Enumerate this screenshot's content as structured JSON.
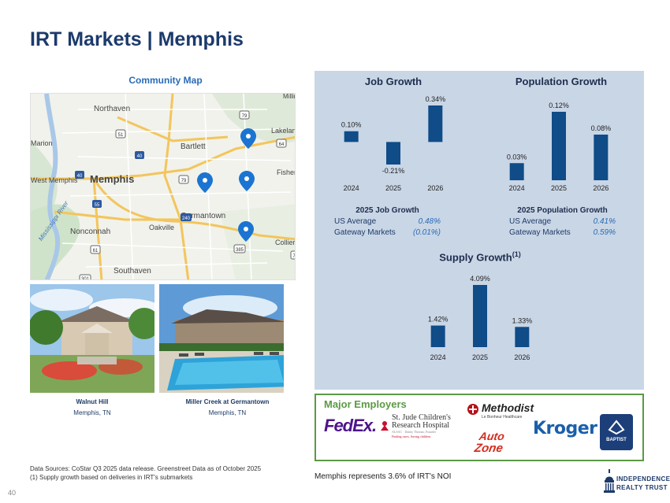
{
  "title": "IRT Markets | Memphis",
  "community_map": {
    "label": "Community Map",
    "places": [
      "Northaven",
      "Bartlett",
      "Memphis",
      "Germantown",
      "Nonconnah",
      "Oakville",
      "Southaven",
      "Collier",
      "Fisher",
      "Lakeland",
      "Millington"
    ],
    "map_text": [
      "Marion",
      "West Memphis",
      "Mississippi River"
    ],
    "route_shields": [
      "79",
      "51",
      "40",
      "64",
      "55",
      "79",
      "240",
      "385",
      "61",
      "301",
      "7",
      "40"
    ]
  },
  "properties": [
    {
      "name": "Walnut Hill",
      "location": "Memphis, TN"
    },
    {
      "name": "Miller Creek at Germantown",
      "location": "Memphis, TN"
    }
  ],
  "job_growth": {
    "title": "Job Growth",
    "stats": {
      "title": "2025 Job Growth",
      "rows": [
        {
          "label": "US Average",
          "value": "0.48%"
        },
        {
          "label": "Gateway Markets",
          "value": "(0.01%)"
        }
      ]
    }
  },
  "population_growth": {
    "title": "Population Growth",
    "stats": {
      "title": "2025 Population Growth",
      "rows": [
        {
          "label": "US Average",
          "value": "0.41%"
        },
        {
          "label": "Gateway Markets",
          "value": "0.59%"
        }
      ]
    }
  },
  "supply_growth": {
    "title": "Supply Growth",
    "superscript": "(1)"
  },
  "chart_data": [
    {
      "type": "bar",
      "title": "Job Growth",
      "categories": [
        "2024",
        "2025",
        "2026"
      ],
      "values": [
        0.1,
        -0.21,
        0.34
      ],
      "labels": [
        "0.10%",
        "-0.21%",
        "0.34%"
      ],
      "color": "#0f4c88"
    },
    {
      "type": "bar",
      "title": "Population Growth",
      "categories": [
        "2024",
        "2025",
        "2026"
      ],
      "values": [
        0.03,
        0.12,
        0.08
      ],
      "labels": [
        "0.03%",
        "0.12%",
        "0.08%"
      ],
      "color": "#0f4c88"
    },
    {
      "type": "bar",
      "title": "Supply Growth",
      "categories": [
        "2024",
        "2025",
        "2026"
      ],
      "values": [
        1.42,
        4.09,
        1.33
      ],
      "labels": [
        "1.42%",
        "4.09%",
        "1.33%"
      ],
      "color": "#0f4c88"
    }
  ],
  "major_employers": {
    "title": "Major Employers",
    "logos": {
      "fedex": "FedEx.",
      "stjude_1": "St. Jude Children's",
      "stjude_2": "Research Hospital",
      "stjude_3": "ALSAC · Danny Thomas, Founder",
      "stjude_4": "Finding cures. Saving children.",
      "methodist": "Methodist",
      "methodist_sub": "Le Bonheur Healthcare",
      "autozone_1": "Auto",
      "autozone_2": "Zone",
      "kroger": "Kroger",
      "baptist": "BAPTIST"
    }
  },
  "footnotes": {
    "source": "Data Sources: CoStar Q3 2025 data release. Greenstreet Data as of October 2025",
    "note1": "(1)  Supply growth based on deliveries in IRT's submarkets"
  },
  "noi_text": "Memphis represents 3.6% of IRT's NOI",
  "page_number": "40",
  "brand": {
    "line1": "INDEPENDENCE",
    "line2": "REALTY TRUST"
  },
  "colors": {
    "bar": "#0f4c88",
    "panel": "#c9d6e6",
    "accent": "#2a6bb4",
    "green": "#5b9a44"
  }
}
